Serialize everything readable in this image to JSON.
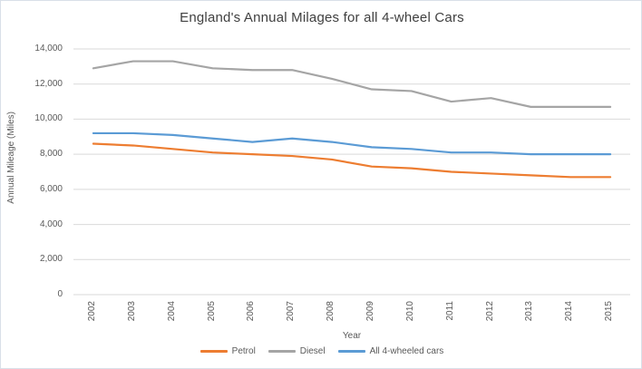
{
  "chart_data": {
    "type": "line",
    "title": "England's Annual Milages for all 4-wheel Cars",
    "xlabel": "Year",
    "ylabel": "Annual Mileage (Miles)",
    "x": [
      2002,
      2003,
      2004,
      2005,
      2006,
      2007,
      2008,
      2009,
      2010,
      2011,
      2012,
      2013,
      2014,
      2015
    ],
    "series": [
      {
        "name": "Petrol",
        "color": "#ED7D31",
        "values": [
          8600,
          8500,
          8300,
          8100,
          8000,
          7900,
          7700,
          7300,
          7200,
          7000,
          6900,
          6800,
          6700,
          6700
        ]
      },
      {
        "name": "Diesel",
        "color": "#A5A5A5",
        "values": [
          12900,
          13300,
          13300,
          12900,
          12800,
          12800,
          12300,
          11700,
          11600,
          11000,
          11200,
          10700,
          10700,
          10700
        ]
      },
      {
        "name": "All 4-wheeled cars",
        "color": "#5B9BD5",
        "values": [
          9200,
          9200,
          9100,
          8900,
          8700,
          8900,
          8700,
          8400,
          8300,
          8100,
          8100,
          8000,
          8000,
          8000
        ]
      }
    ],
    "ylim": [
      0,
      14000
    ],
    "ytick_step": 2000,
    "ytick_labels": [
      "0",
      "2,000",
      "4,000",
      "6,000",
      "8,000",
      "10,000",
      "12,000",
      "14,000"
    ],
    "grid": true,
    "legend_position": "bottom",
    "colors": {
      "gridline": "#D9D9D9",
      "axis_text": "#595959",
      "title_text": "#404040"
    }
  }
}
